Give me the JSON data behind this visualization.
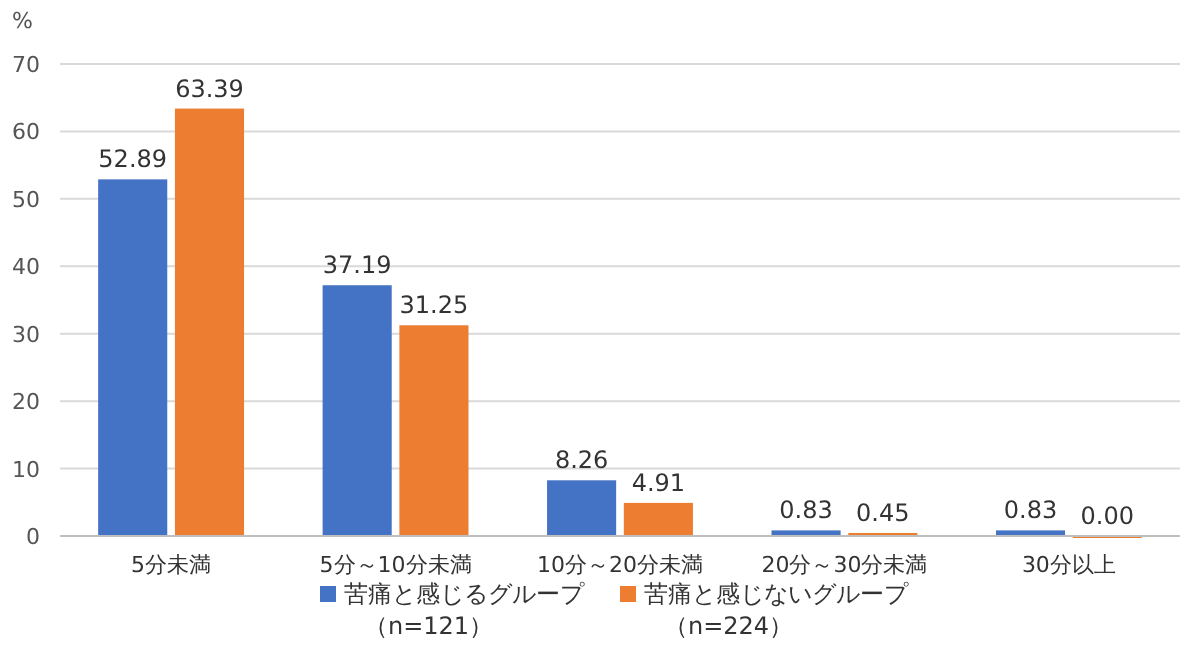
{
  "chart_data": {
    "type": "bar",
    "ylabel": "%",
    "categories": [
      "5分未満",
      "5分～10分未満",
      "10分～20分未満",
      "20分～30分未満",
      "30分以上"
    ],
    "series": [
      {
        "name": "苦痛と感じるグループ（n=121）",
        "color": "#4472c4",
        "values": [
          52.89,
          37.19,
          8.26,
          0.83,
          0.83
        ],
        "value_labels": [
          "52.89",
          "37.19",
          "8.26",
          "0.83",
          "0.83"
        ]
      },
      {
        "name": "苦痛と感じないグループ（n=224）",
        "color": "#ed7d31",
        "values": [
          63.39,
          31.25,
          4.91,
          0.45,
          0.0
        ],
        "value_labels": [
          "63.39",
          "31.25",
          "4.91",
          "0.45",
          "0.00"
        ]
      }
    ],
    "ylim": [
      0,
      70
    ],
    "yticks": [
      0,
      10,
      20,
      30,
      40,
      50,
      60,
      70
    ],
    "grid": "y",
    "legend": "bottom"
  }
}
